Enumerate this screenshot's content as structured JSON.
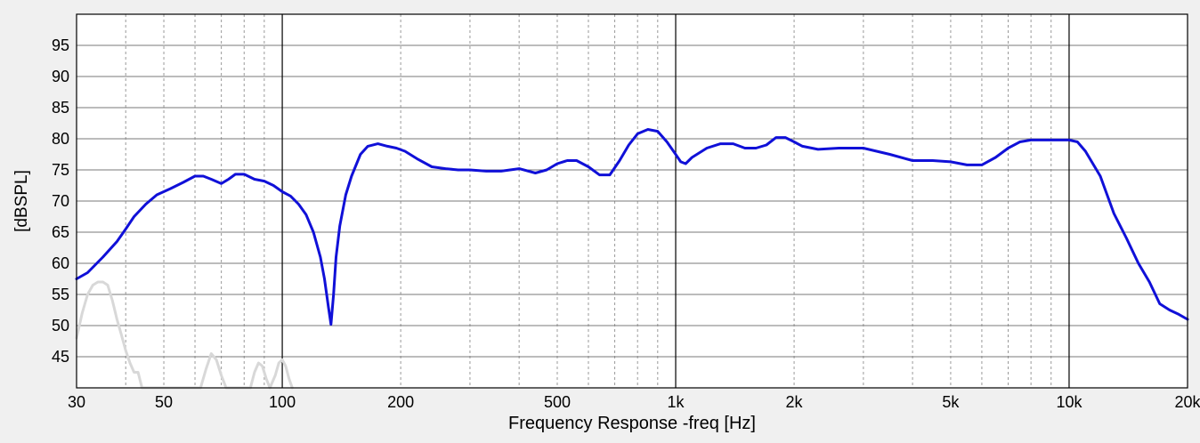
{
  "chart_data": {
    "type": "line",
    "xlabel": "Frequency Response -freq [Hz]",
    "ylabel": "[dBSPL]",
    "x_scale": "log",
    "xlim": [
      30,
      20000
    ],
    "ylim": [
      40,
      100
    ],
    "grid": true,
    "x_ticks": [
      {
        "value": 30,
        "label": "30"
      },
      {
        "value": 50,
        "label": "50"
      },
      {
        "value": 100,
        "label": "100"
      },
      {
        "value": 200,
        "label": "200"
      },
      {
        "value": 500,
        "label": "500"
      },
      {
        "value": 1000,
        "label": "1k"
      },
      {
        "value": 2000,
        "label": "2k"
      },
      {
        "value": 5000,
        "label": "5k"
      },
      {
        "value": 10000,
        "label": "10k"
      },
      {
        "value": 20000,
        "label": "20k"
      }
    ],
    "y_ticks": [
      {
        "value": 45,
        "label": "45"
      },
      {
        "value": 50,
        "label": "50"
      },
      {
        "value": 55,
        "label": "55"
      },
      {
        "value": 60,
        "label": "60"
      },
      {
        "value": 65,
        "label": "65"
      },
      {
        "value": 70,
        "label": "70"
      },
      {
        "value": 75,
        "label": "75"
      },
      {
        "value": 80,
        "label": "80"
      },
      {
        "value": 85,
        "label": "85"
      },
      {
        "value": 90,
        "label": "90"
      },
      {
        "value": 95,
        "label": "95"
      }
    ],
    "series": [
      {
        "color": "#1010d8",
        "x": [
          30,
          32,
          35,
          38,
          40,
          42,
          45,
          48,
          52,
          56,
          60,
          63,
          66,
          70,
          73,
          76,
          80,
          85,
          90,
          95,
          100,
          105,
          110,
          115,
          120,
          125,
          128,
          131,
          133,
          135,
          137,
          140,
          145,
          150,
          158,
          165,
          175,
          185,
          195,
          205,
          220,
          240,
          260,
          280,
          300,
          330,
          360,
          400,
          440,
          470,
          500,
          530,
          560,
          600,
          640,
          680,
          720,
          760,
          800,
          850,
          900,
          950,
          1000,
          1030,
          1060,
          1100,
          1200,
          1300,
          1400,
          1500,
          1600,
          1700,
          1800,
          1900,
          2000,
          2100,
          2300,
          2600,
          3000,
          3500,
          4000,
          4500,
          5000,
          5500,
          6000,
          6500,
          7000,
          7500,
          8000,
          9000,
          10000,
          10500,
          11000,
          12000,
          13000,
          14000,
          15000,
          16000,
          17000,
          18000,
          19000,
          20000
        ],
        "y": [
          57.5,
          58.5,
          61,
          63.5,
          65.5,
          67.5,
          69.5,
          71,
          72,
          73,
          74,
          74,
          73.5,
          72.8,
          73.5,
          74.3,
          74.3,
          73.5,
          73.2,
          72.5,
          71.5,
          70.8,
          69.5,
          67.8,
          65,
          61,
          57.5,
          53,
          50.2,
          55,
          61,
          66,
          71,
          74,
          77.5,
          78.8,
          79.2,
          78.8,
          78.5,
          78,
          76.8,
          75.5,
          75.2,
          75,
          75,
          74.8,
          74.8,
          75.2,
          74.5,
          75,
          76,
          76.5,
          76.5,
          75.5,
          74.2,
          74.2,
          76.5,
          79,
          80.8,
          81.5,
          81.2,
          79.5,
          77.5,
          76.3,
          76,
          77,
          78.5,
          79.2,
          79.2,
          78.5,
          78.5,
          79,
          80.2,
          80.2,
          79.5,
          78.8,
          78.3,
          78.5,
          78.5,
          77.5,
          76.5,
          76.5,
          76.3,
          75.8,
          75.8,
          77,
          78.5,
          79.5,
          79.8,
          79.8,
          79.8,
          79.5,
          78,
          74,
          68,
          64,
          60,
          57,
          53.5,
          52.5,
          51.8,
          51
        ]
      },
      {
        "color": "#d8d8d8",
        "x": [
          30,
          31,
          32,
          33,
          34,
          35,
          36,
          37,
          38,
          39,
          40,
          41,
          42,
          43,
          44,
          62,
          64,
          66,
          68,
          70,
          72,
          83,
          85,
          87,
          89,
          91,
          93,
          96,
          98,
          100,
          102,
          104,
          106
        ],
        "y": [
          48,
          52,
          55,
          56.5,
          57,
          57,
          56.5,
          54,
          51,
          48.5,
          46,
          44,
          42.5,
          42.5,
          40,
          40,
          43,
          45.5,
          44.5,
          42,
          40,
          40,
          42.5,
          44,
          43.5,
          41.5,
          40,
          42,
          44,
          44.5,
          43.5,
          41.5,
          40
        ]
      }
    ]
  }
}
